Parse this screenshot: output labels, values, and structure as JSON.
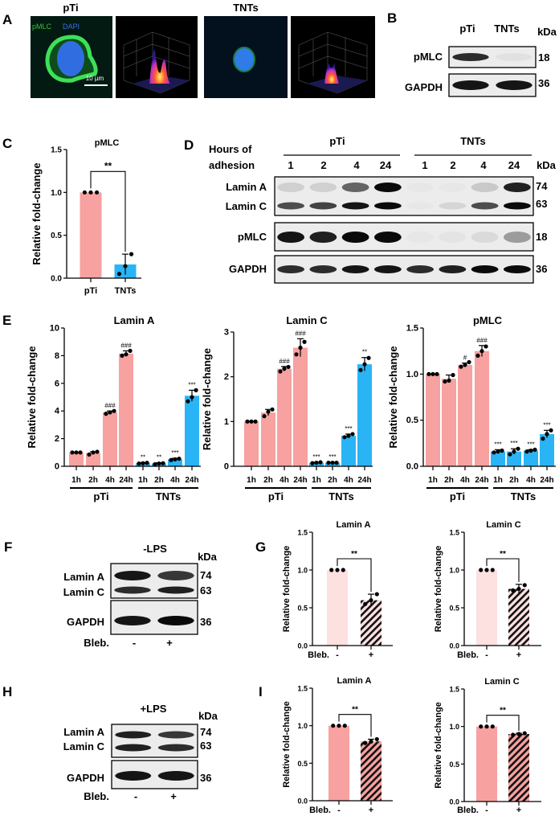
{
  "panels": {
    "A": "A",
    "B": "B",
    "C": "C",
    "D": "D",
    "E": "E",
    "F": "F",
    "G": "G",
    "H": "H",
    "I": "I"
  },
  "panel_a": {
    "title_left": "pTi",
    "title_right": "TNTs",
    "stain_pmlc": "pMLC",
    "stain_dapi": "DAPI",
    "scale_bar": "10 µm",
    "colors": {
      "pmlc": "#2fc63a",
      "dapi": "#2f7cf0"
    }
  },
  "panel_b": {
    "lanes": [
      "pTi",
      "TNTs"
    ],
    "kda": "kDa",
    "rows": [
      {
        "label": "pMLC",
        "kda": "18",
        "bands": [
          [
            0.85,
            0.05
          ]
        ]
      },
      {
        "label": "GAPDH",
        "kda": "36",
        "bands": [
          [
            0.95,
            0.95
          ]
        ]
      }
    ]
  },
  "panel_d": {
    "hours_line1": "Hours of",
    "hours_line2": "adhesion",
    "group_pti": "pTi",
    "group_tnts": "TNTs",
    "lanes": [
      "1",
      "2",
      "4",
      "24",
      "1",
      "2",
      "4",
      "24"
    ],
    "kda": "kDa",
    "lamin": {
      "label_a": "Lamin A",
      "label_c": "Lamin C",
      "kda_a": "74",
      "kda_c": "63",
      "bands_a": [
        0.12,
        0.12,
        0.6,
        1,
        0.02,
        0.02,
        0.15,
        0.9
      ],
      "bands_c": [
        0.7,
        0.75,
        0.95,
        1,
        0.02,
        0.1,
        0.7,
        1
      ]
    },
    "pmlc": {
      "label": "pMLC",
      "kda": "18",
      "bands": [
        0.95,
        0.9,
        1,
        1,
        0.02,
        0.03,
        0.08,
        0.35
      ]
    },
    "gapdh": {
      "label": "GAPDH",
      "kda": "36",
      "bands": [
        0.85,
        0.85,
        0.95,
        0.95,
        0.85,
        0.9,
        1,
        1
      ]
    }
  },
  "panel_f": {
    "condition": "-LPS",
    "kda": "kDa",
    "label_a": "Lamin A",
    "label_c": "Lamin C",
    "kda_a": "74",
    "kda_c": "63",
    "gapdh": "GAPDH",
    "kda_g": "36",
    "bleb": "Bleb.",
    "minus": "-",
    "plus": "+",
    "bands_a": [
      0.95,
      0.8
    ],
    "bands_c": [
      0.85,
      0.9
    ],
    "bands_g": [
      0.95,
      1
    ]
  },
  "panel_h": {
    "condition": "+LPS",
    "kda": "kDa",
    "label_a": "Lamin A",
    "label_c": "Lamin C",
    "kda_a": "74",
    "kda_c": "63",
    "gapdh": "GAPDH",
    "kda_g": "36",
    "bleb": "Bleb.",
    "minus": "-",
    "plus": "+",
    "bands_a": [
      0.9,
      0.8
    ],
    "bands_c": [
      0.9,
      0.85
    ],
    "bands_g": [
      0.95,
      0.95
    ]
  },
  "colors": {
    "pti": "#f7a1a0",
    "tnts": "#2ab4f5",
    "pti_light": "#fde0e0",
    "axis": "#000000"
  },
  "chart_data": [
    {
      "id": "C",
      "type": "bar",
      "title": "pMLC",
      "ylabel": "Relative fold-change",
      "ylim": [
        0,
        1.5
      ],
      "yticks": [
        "0.0",
        "0.5",
        "1.0",
        "1.5"
      ],
      "categories": [
        "pTi",
        "TNTs"
      ],
      "values": [
        1.0,
        0.16
      ],
      "sd": [
        0,
        0.12
      ],
      "points": [
        [
          1,
          1,
          1
        ],
        [
          0.05,
          0.14,
          0.28
        ]
      ],
      "colors": [
        "pti",
        "tnts"
      ],
      "significance": [
        {
          "between": [
            0,
            1
          ],
          "label": "**"
        }
      ]
    },
    {
      "id": "E1",
      "type": "bar",
      "title": "Lamin A",
      "ylabel": "Relative fold-change",
      "ylim": [
        0,
        10
      ],
      "yticks": [
        "0",
        "2",
        "4",
        "6",
        "8",
        "10"
      ],
      "categories": [
        "1h",
        "2h",
        "4h",
        "24h",
        "1h",
        "2h",
        "4h",
        "24h"
      ],
      "groups": [
        "pTi",
        "TNTs"
      ],
      "values": [
        1.0,
        0.95,
        3.9,
        8.15,
        0.22,
        0.2,
        0.5,
        5.1
      ],
      "sd": [
        0,
        0.1,
        0.1,
        0.2,
        0.05,
        0.05,
        0.08,
        0.4
      ],
      "points": [
        [
          1,
          1,
          1
        ],
        [
          0.85,
          1.0,
          1.05
        ],
        [
          3.8,
          3.9,
          4.0
        ],
        [
          8.0,
          8.1,
          8.35
        ],
        [
          0.2,
          0.22,
          0.25
        ],
        [
          0.15,
          0.2,
          0.22
        ],
        [
          0.45,
          0.5,
          0.55
        ],
        [
          4.7,
          5.0,
          5.5
        ]
      ],
      "colors": [
        "pti",
        "pti",
        "pti",
        "pti",
        "tnts",
        "tnts",
        "tnts",
        "tnts"
      ],
      "labels": [
        "",
        "",
        "###",
        "###",
        "**",
        "**",
        "***",
        "***"
      ]
    },
    {
      "id": "E2",
      "type": "bar",
      "title": "Lamin C",
      "ylabel": "Relative fold-change",
      "ylim": [
        0,
        3
      ],
      "yticks": [
        "0",
        "1",
        "2",
        "3"
      ],
      "categories": [
        "1h",
        "2h",
        "4h",
        "24h",
        "1h",
        "2h",
        "4h",
        "24h"
      ],
      "groups": [
        "pTi",
        "TNTs"
      ],
      "values": [
        1.0,
        1.2,
        2.18,
        2.65,
        0.08,
        0.08,
        0.68,
        2.28
      ],
      "sd": [
        0,
        0.07,
        0.05,
        0.2,
        0.01,
        0.01,
        0.04,
        0.15
      ],
      "points": [
        [
          1,
          1,
          1
        ],
        [
          1.12,
          1.22,
          1.27
        ],
        [
          2.12,
          2.18,
          2.22
        ],
        [
          2.5,
          2.65,
          2.78
        ],
        [
          0.07,
          0.08,
          0.09
        ],
        [
          0.08,
          0.08,
          0.08
        ],
        [
          0.65,
          0.68,
          0.72
        ],
        [
          2.15,
          2.28,
          2.42
        ]
      ],
      "colors": [
        "pti",
        "pti",
        "pti",
        "pti",
        "tnts",
        "tnts",
        "tnts",
        "tnts"
      ],
      "labels": [
        "",
        "",
        "###",
        "###",
        "***",
        "***",
        "***",
        "**"
      ]
    },
    {
      "id": "E3",
      "type": "bar",
      "title": "pMLC",
      "ylabel": "Relative fold-change",
      "ylim": [
        0,
        1.5
      ],
      "yticks": [
        "0.0",
        "0.5",
        "1.0",
        "1.5"
      ],
      "categories": [
        "1h",
        "2h",
        "4h",
        "24h",
        "1h",
        "2h",
        "4h",
        "24h"
      ],
      "groups": [
        "pTi",
        "TNTs"
      ],
      "values": [
        1.0,
        0.95,
        1.1,
        1.25,
        0.16,
        0.16,
        0.17,
        0.35
      ],
      "sd": [
        0,
        0.04,
        0.02,
        0.06,
        0.02,
        0.03,
        0.01,
        0.04
      ],
      "points": [
        [
          1,
          1,
          1
        ],
        [
          0.92,
          0.93,
          0.99
        ],
        [
          1.08,
          1.1,
          1.13
        ],
        [
          1.2,
          1.25,
          1.3
        ],
        [
          0.15,
          0.16,
          0.17
        ],
        [
          0.13,
          0.16,
          0.19
        ],
        [
          0.16,
          0.17,
          0.18
        ],
        [
          0.3,
          0.35,
          0.39
        ]
      ],
      "colors": [
        "pti",
        "pti",
        "pti",
        "pti",
        "tnts",
        "tnts",
        "tnts",
        "tnts"
      ],
      "labels": [
        "",
        "",
        "#",
        "###",
        "***",
        "***",
        "***",
        "***"
      ]
    },
    {
      "id": "G1",
      "type": "bar",
      "title": "Lamin A",
      "ylabel": "Relative fold-change",
      "ylim": [
        0,
        1.5
      ],
      "yticks": [
        "0.0",
        "0.5",
        "1.0",
        "1.5"
      ],
      "xlabel": "Bleb.",
      "categories": [
        "-",
        "+"
      ],
      "values": [
        1.0,
        0.6
      ],
      "sd": [
        0,
        0.08
      ],
      "points": [
        [
          1,
          1,
          1
        ],
        [
          0.55,
          0.6,
          0.68
        ]
      ],
      "colors": [
        "pti_light",
        "hatch-light"
      ],
      "significance": [
        {
          "between": [
            0,
            1
          ],
          "label": "**"
        }
      ]
    },
    {
      "id": "G2",
      "type": "bar",
      "title": "Lamin C",
      "ylabel": "Relative fold-change",
      "ylim": [
        0,
        1.5
      ],
      "yticks": [
        "0.0",
        "0.5",
        "1.0",
        "1.5"
      ],
      "xlabel": "Bleb.",
      "categories": [
        "-",
        "+"
      ],
      "values": [
        1.0,
        0.75
      ],
      "sd": [
        0,
        0.06
      ],
      "points": [
        [
          1,
          1,
          1
        ],
        [
          0.73,
          0.75,
          0.8
        ]
      ],
      "colors": [
        "pti_light",
        "hatch-light"
      ],
      "significance": [
        {
          "between": [
            0,
            1
          ],
          "label": "**"
        }
      ]
    },
    {
      "id": "I1",
      "type": "bar",
      "title": "Lamin A",
      "ylabel": "Relative fold-change",
      "ylim": [
        0,
        1.5
      ],
      "yticks": [
        "0.0",
        "0.5",
        "1.0",
        "1.5"
      ],
      "xlabel": "Bleb.",
      "categories": [
        "-",
        "+"
      ],
      "values": [
        1.0,
        0.79
      ],
      "sd": [
        0,
        0.03
      ],
      "points": [
        [
          1,
          1,
          1
        ],
        [
          0.77,
          0.79,
          0.82
        ]
      ],
      "colors": [
        "pti",
        "hatch"
      ],
      "significance": [
        {
          "between": [
            0,
            1
          ],
          "label": "**"
        }
      ]
    },
    {
      "id": "I2",
      "type": "bar",
      "title": "Lamin C",
      "ylabel": "Relative fold-change",
      "ylim": [
        0,
        1.5
      ],
      "yticks": [
        "0.0",
        "0.5",
        "1.0",
        "1.5"
      ],
      "xlabel": "Bleb.",
      "categories": [
        "-",
        "+"
      ],
      "values": [
        1.0,
        0.9
      ],
      "sd": [
        0,
        0.01
      ],
      "points": [
        [
          1,
          1,
          1
        ],
        [
          0.89,
          0.9,
          0.91
        ]
      ],
      "colors": [
        "pti",
        "hatch"
      ],
      "significance": [
        {
          "between": [
            0,
            1
          ],
          "label": "**"
        }
      ]
    }
  ]
}
